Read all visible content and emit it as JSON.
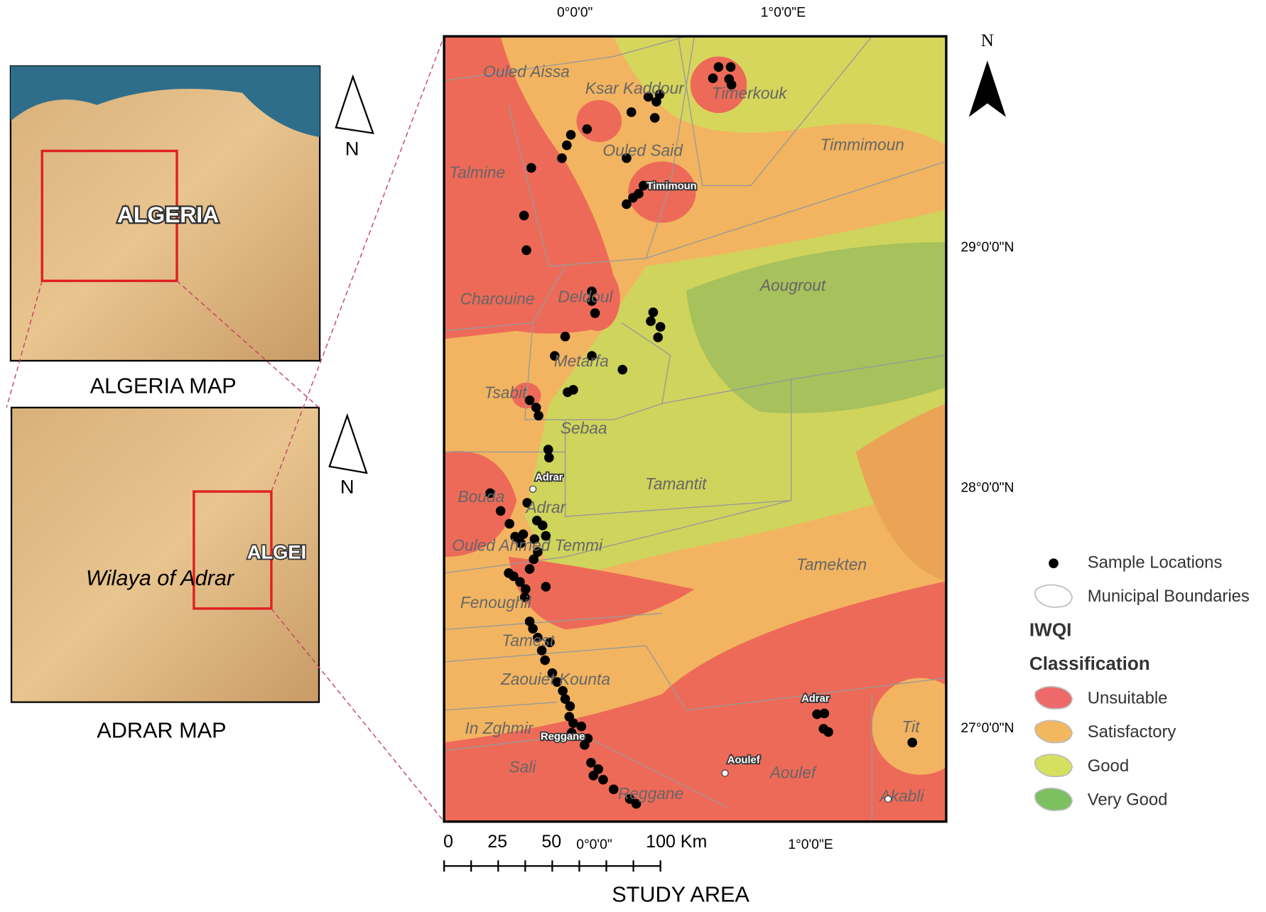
{
  "algeria_map": {
    "map_label": "ALGERIA",
    "caption": "ALGERIA MAP",
    "north": "N"
  },
  "adrar_map": {
    "map_label": "Wilaya of Adrar",
    "country_label": "ALGEI",
    "caption": "ADRAR MAP",
    "north": "N"
  },
  "study_area": {
    "caption": "STUDY AREA",
    "north": "N",
    "top_coords": [
      "0°0'0\"",
      "1°0'0\"E"
    ],
    "bottom_coords": [
      "0°0'0\"",
      "1°0'0\"E"
    ],
    "right_coords": [
      "29°0'0\"N",
      "28°0'0\"N",
      "27°0'0\"N"
    ],
    "places": [
      "Ouled Aissa",
      "Ksar Kaddour",
      "Timerkouk",
      "Ouled Said",
      "Timmimoun",
      "Talmine",
      "Charouine",
      "Deldoul",
      "Aougrout",
      "Metarfa",
      "Tsabit",
      "Sebaa",
      "Tamantit",
      "Bouda",
      "Adrar",
      "Ouled Ahmed Temmi",
      "Tamekten",
      "Fenoughil",
      "Tamest",
      "Zaouiet Kounta",
      "In Zghmir",
      "Sali",
      "Aoulef",
      "Reggane",
      "Akabli",
      "Tit"
    ],
    "towns": [
      "Timimoun",
      "Adrar",
      "Adrar",
      "Reggane",
      "Aoulef"
    ],
    "scale_bar": [
      "0",
      "25",
      "50",
      "100 Km"
    ]
  },
  "legend": {
    "items": [
      "Sample Locations",
      "Municipal Boundaries"
    ],
    "heading": [
      "IWQI",
      "Classification"
    ],
    "classes": [
      "Unsuitable",
      "Satisfactory",
      "Good",
      "Very Good"
    ]
  }
}
